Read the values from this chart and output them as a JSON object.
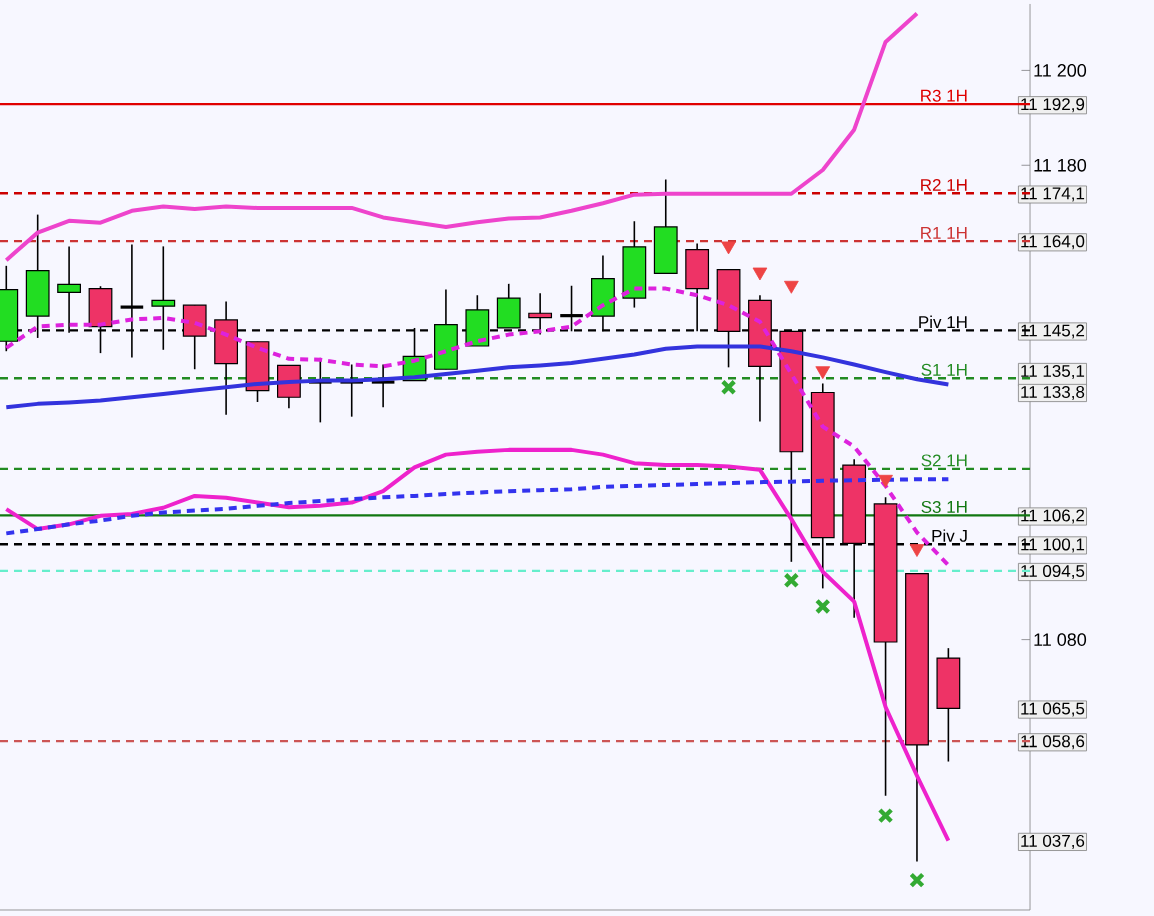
{
  "chart_data": {
    "type": "candlestick",
    "categories": [
      null,
      null,
      null,
      null,
      null,
      null,
      null,
      null,
      null,
      null,
      null,
      null,
      null,
      null,
      null,
      null,
      null,
      null,
      null,
      null,
      null,
      null,
      null,
      null,
      null,
      null,
      null,
      null,
      null,
      null,
      null
    ],
    "ohlc": [
      [
        11142.9,
        11158.8,
        11140.8,
        11153.8
      ],
      [
        11148.2,
        11169.6,
        11143.6,
        11157.8
      ],
      [
        11153.2,
        11162.9,
        11144.7,
        11154.9
      ],
      [
        11154.0,
        11154.5,
        11140.4,
        11146.0
      ],
      [
        11150.1,
        11163.3,
        11139.5,
        11150.1
      ],
      [
        11150.3,
        11162.9,
        11141.1,
        11151.5
      ],
      [
        11150.5,
        11150.5,
        11137.0,
        11144.0
      ],
      [
        11147.4,
        11151.3,
        11127.4,
        11138.2
      ],
      [
        11142.8,
        11142.8,
        11130.1,
        11132.5
      ],
      [
        11137.8,
        11137.8,
        11128.8,
        11131.1
      ],
      [
        11134.3,
        11139.4,
        11125.8,
        11134.3
      ],
      [
        11134.3,
        11138.0,
        11127.0,
        11134.3
      ],
      [
        11134.3,
        11138.0,
        11129.0,
        11134.3
      ],
      [
        11134.6,
        11145.7,
        11134.6,
        11139.7
      ],
      [
        11137.0,
        11153.8,
        11137.0,
        11146.4
      ],
      [
        11141.9,
        11152.6,
        11141.9,
        11149.5
      ],
      [
        11145.7,
        11155.0,
        11145.7,
        11152.0
      ],
      [
        11148.8,
        11153.0,
        11144.3,
        11147.9
      ],
      [
        11148.3,
        11154.6,
        11145.0,
        11148.3
      ],
      [
        11148.2,
        11161.0,
        11145.0,
        11156.1
      ],
      [
        11152.0,
        11168.2,
        11150.0,
        11162.8
      ],
      [
        11157.2,
        11177.0,
        11157.2,
        11167.0
      ],
      [
        11162.2,
        11163.5,
        11145.0,
        11154.0
      ],
      [
        11158.0,
        11158.0,
        11137.4,
        11145.0
      ],
      [
        11151.5,
        11152.6,
        11126.0,
        11137.6
      ],
      [
        11145.0,
        11145.0,
        11096.4,
        11119.6
      ],
      [
        11132.1,
        11134.0,
        11090.8,
        11101.5
      ],
      [
        11116.8,
        11118.0,
        11084.6,
        11100.3
      ],
      [
        11108.6,
        11110.0,
        11047.1,
        11079.5
      ],
      [
        11093.9,
        11094.0,
        11033.2,
        11057.8
      ],
      [
        11076.1,
        11078.2,
        11054.3,
        11065.5
      ]
    ],
    "colors": [
      "#22dd22",
      "#22dd22",
      "#22dd22",
      "#ee3366",
      "#000000",
      "#22dd22",
      "#ee3366",
      "#ee3366",
      "#ee3366",
      "#ee3366",
      "#000000",
      "#000000",
      "#000000",
      "#22dd22",
      "#22dd22",
      "#22dd22",
      "#22dd22",
      "#ee3366",
      "#000000",
      "#22dd22",
      "#22dd22",
      "#22dd22",
      "#ee3366",
      "#ee3366",
      "#ee3366",
      "#ee3366",
      "#ee3366",
      "#ee3366",
      "#ee3366",
      "#ee3366",
      "#ee3366"
    ],
    "series": [
      {
        "type": "line",
        "color": "#ee44cc",
        "line_style": "solid",
        "values": [
          11160,
          11165.8,
          11168.3,
          11167.9,
          11170.4,
          11171.3,
          11170.8,
          11171.3,
          11171,
          11171,
          11171,
          11171,
          11169,
          11168,
          11167,
          11168,
          11168.8,
          11169,
          11170.4,
          11172,
          11173.8,
          11174,
          11174,
          11174,
          11174,
          11174,
          11179,
          11187.5,
          11206,
          11212,
          null
        ]
      },
      {
        "type": "line",
        "color": "#ee22cc",
        "line_style": "solid",
        "values": [
          11107.5,
          11103.3,
          11104.3,
          11106.1,
          11106.5,
          11107.8,
          11110.3,
          11109.9,
          11108.9,
          11107.9,
          11108.2,
          11108.9,
          11111.3,
          11116.3,
          11119,
          11119.6,
          11120,
          11120,
          11120,
          11119,
          11117.2,
          11116.8,
          11116.8,
          11116.5,
          11115.8,
          11105.4,
          11094.3,
          11088,
          11065.8,
          11051.3,
          11037.6
        ]
      },
      {
        "type": "line",
        "color": "#3333dd",
        "line_style": "solid",
        "values": [
          11129,
          11129.7,
          11130,
          11130.4,
          11131.1,
          11131.8,
          11132.5,
          11133.2,
          11133.9,
          11134.3,
          11134.6,
          11134.6,
          11134.9,
          11135.3,
          11136,
          11136.7,
          11137.4,
          11137.8,
          11138.3,
          11139.2,
          11140.1,
          11141.3,
          11141.8,
          11141.8,
          11141.8,
          11140.8,
          11139.5,
          11138,
          11136.4,
          11134.9,
          11133.8
        ]
      },
      {
        "type": "line",
        "color": "#3333ee",
        "line_style": "dashed",
        "values": [
          11102.4,
          11103.3,
          11104.3,
          11105.1,
          11106.1,
          11106.8,
          11107.2,
          11107.6,
          11108.2,
          11108.8,
          11109.2,
          11109.6,
          11110,
          11110.3,
          11110.7,
          11111,
          11111.3,
          11111.5,
          11111.7,
          11112.2,
          11112.4,
          11112.6,
          11112.8,
          11113,
          11113.2,
          11113.3,
          11113.5,
          11113.6,
          11113.7,
          11113.8,
          11113.8
        ]
      },
      {
        "type": "line",
        "color": "#dd22dd",
        "line_style": "dashed",
        "values": [
          11141.5,
          11146,
          11146.4,
          11146.4,
          11147.5,
          11147.8,
          11146.8,
          11144.3,
          11141.5,
          11139.2,
          11139,
          11138,
          11137.6,
          11138.8,
          11140.8,
          11142.9,
          11144.3,
          11145,
          11146,
          11150.5,
          11154,
          11154,
          11152.6,
          11150.5,
          11147,
          11136,
          11124.9,
          11120.7,
          11112.4,
          11102.6,
          11095.7
        ]
      },
      {
        "type": "scatter",
        "color": "#33aa33",
        "marker": "cross",
        "values": [
          null,
          null,
          null,
          null,
          null,
          null,
          null,
          null,
          null,
          null,
          null,
          null,
          null,
          null,
          null,
          null,
          null,
          null,
          null,
          null,
          null,
          null,
          null,
          11133.2,
          null,
          11092.5,
          11087,
          null,
          11042.9,
          11029.3,
          null
        ]
      },
      {
        "type": "scatter",
        "color": "#ee4444",
        "marker": "triangle",
        "values": [
          null,
          null,
          null,
          null,
          null,
          null,
          null,
          null,
          null,
          null,
          null,
          null,
          null,
          null,
          null,
          null,
          null,
          null,
          null,
          null,
          null,
          null,
          null,
          11163,
          11157.5,
          11154.7,
          11136.7,
          null,
          11113.8,
          11099.2,
          null
        ]
      }
    ],
    "ylim": [
      11023,
      11214
    ],
    "yticks": [
      {
        "value": 11200,
        "label": "11 200"
      },
      {
        "value": 11180,
        "label": "11 180"
      },
      {
        "value": 11080,
        "label": "11 080"
      },
      {
        "value": 11192.9,
        "label": "11 192,9"
      },
      {
        "value": 11174.1,
        "label": "11 174,1"
      },
      {
        "value": 11164.0,
        "label": "11 164,0"
      },
      {
        "value": 11145.2,
        "label": "11 145,2"
      },
      {
        "value": 11135.1,
        "label": "11 135,1"
      },
      {
        "value": 11133.8,
        "label": "11 133,8"
      },
      {
        "value": 11106.2,
        "label": "11 106,2"
      },
      {
        "value": 11100.1,
        "label": "11 100,1"
      },
      {
        "value": 11094.5,
        "label": "11 094,5"
      },
      {
        "value": 11065.5,
        "label": "11 065,5"
      },
      {
        "value": 11058.6,
        "label": "11 058,6"
      },
      {
        "value": 11037.6,
        "label": "11 037,6"
      }
    ],
    "ref_lines": [
      {
        "axis": "y",
        "value": 11192.9,
        "label": "R3 1H",
        "color": "#e00000",
        "line_style": "solid"
      },
      {
        "axis": "y",
        "value": 11174.1,
        "label": "R2 1H",
        "color": "#cc0000",
        "line_style": "dashed"
      },
      {
        "axis": "y",
        "value": 11164.0,
        "label": "R1 1H",
        "color": "#cc3333",
        "line_style": "dashed"
      },
      {
        "axis": "y",
        "value": 11145.2,
        "label": "Piv 1H",
        "color": "#000000",
        "line_style": "dashed"
      },
      {
        "axis": "y",
        "value": 11135.1,
        "label": "S1 1H",
        "color": "#228b22",
        "line_style": "dashed"
      },
      {
        "axis": "y",
        "value": 11116.0,
        "label": "S2 1H",
        "color": "#228b22",
        "line_style": "dashed"
      },
      {
        "axis": "y",
        "value": 11106.2,
        "label": "S3 1H",
        "color": "#117711",
        "line_style": "solid"
      },
      {
        "axis": "y",
        "value": 11100.1,
        "label": "Piv J",
        "color": "#000000",
        "line_style": "dashed"
      },
      {
        "axis": "y",
        "value": 11094.5,
        "color": "#66eecc",
        "line_style": "dashed"
      },
      {
        "axis": "y",
        "value": 11058.6,
        "color": "#cc5555",
        "line_style": "dashed"
      }
    ],
    "tick_labels": "y"
  }
}
